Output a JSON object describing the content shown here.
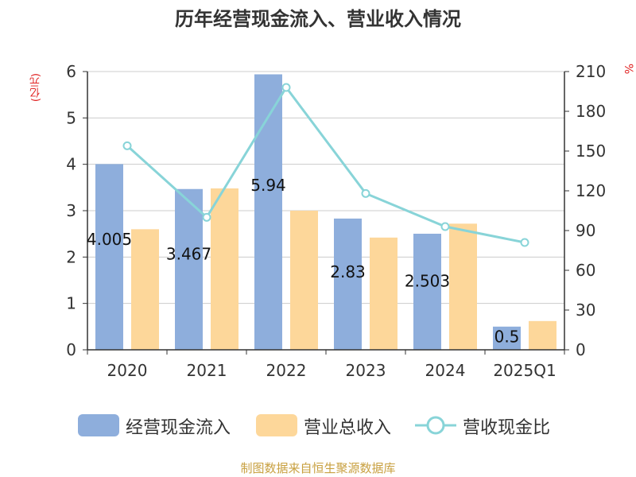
{
  "title": "历年经营现金流入、营业收入情况",
  "yunit_left": "(亿元)",
  "yunit_right": "%",
  "source": "制图数据来自恒生聚源数据库",
  "colors": {
    "inflow": "#8eaedc",
    "revenue": "#fdd79a",
    "ratio": "#88d4d8",
    "axis": "#333333",
    "grid": "#cccccc"
  },
  "chart_data": {
    "type": "bar",
    "categories": [
      "2020",
      "2021",
      "2022",
      "2023",
      "2024",
      "2025Q1"
    ],
    "series": [
      {
        "name": "经营现金流入",
        "type": "bar",
        "axis": "left",
        "values": [
          4.005,
          3.467,
          5.94,
          2.83,
          2.503,
          0.5
        ],
        "labels": [
          "4.005",
          "3.467",
          "5.94",
          "2.83",
          "2.503",
          "0.5"
        ]
      },
      {
        "name": "营业总收入",
        "type": "bar",
        "axis": "left",
        "values": [
          2.6,
          3.48,
          3.0,
          2.42,
          2.72,
          0.62
        ]
      },
      {
        "name": "营收现金比",
        "type": "line",
        "axis": "right",
        "values": [
          154,
          100,
          198,
          118,
          93,
          81
        ]
      }
    ],
    "yleft": {
      "min": 0,
      "max": 6,
      "ticks": [
        "0",
        "1",
        "2",
        "3",
        "4",
        "5",
        "6"
      ]
    },
    "yright": {
      "min": 0,
      "max": 210,
      "ticks": [
        "0",
        "30",
        "60",
        "90",
        "120",
        "150",
        "180",
        "210"
      ]
    },
    "grid": true,
    "legend_position": "bottom"
  }
}
